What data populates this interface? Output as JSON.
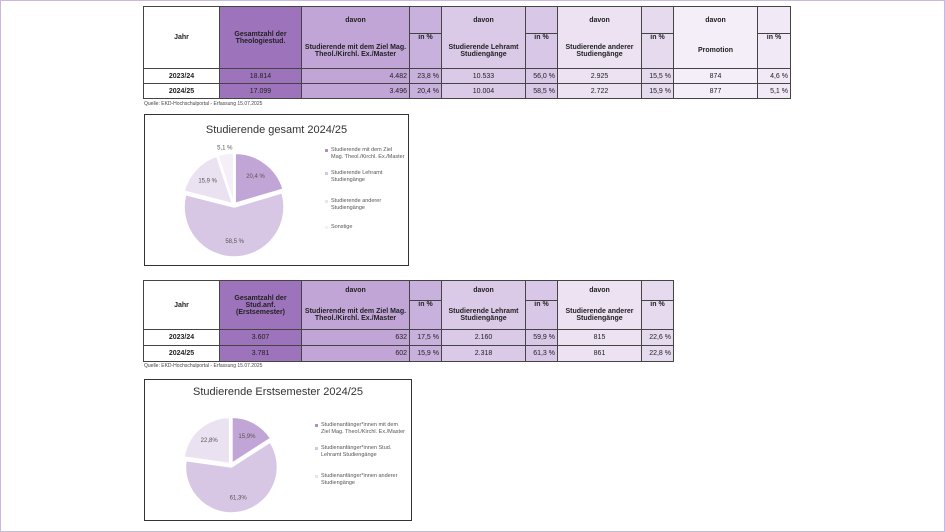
{
  "table1": {
    "header": {
      "jahr": "Jahr",
      "gesamt": "Gesamtzahl der Theologiestud.",
      "davon": "davon",
      "in_pct": "in %",
      "col_mag": "Studierende mit dem Ziel Mag. Theol./Kirchl. Ex./Master",
      "col_lehramt": "Studierende Lehramt Studiengänge",
      "col_andere": "Studierende anderer Studiengänge",
      "col_promotion": "Promotion"
    },
    "rows": [
      {
        "jahr": "2023/24",
        "gesamt": "18.814",
        "mag": "4.482",
        "mag_pct": "23,8 %",
        "lehramt": "10.533",
        "lehramt_pct": "56,0 %",
        "andere": "2.925",
        "andere_pct": "15,5 %",
        "promotion": "874",
        "promotion_pct": "4,6 %"
      },
      {
        "jahr": "2024/25",
        "gesamt": "17.099",
        "mag": "3.496",
        "mag_pct": "20,4 %",
        "lehramt": "10.004",
        "lehramt_pct": "58,5 %",
        "andere": "2.722",
        "andere_pct": "15,9 %",
        "promotion": "877",
        "promotion_pct": "5,1 %"
      }
    ],
    "source": "Quelle: EKD-Hochschulportal - Erfassung 15.07.2025"
  },
  "table2": {
    "header": {
      "jahr": "Jahr",
      "gesamt": "Gesamtzahl der Stud.anf. (Erstsemester)",
      "davon": "davon",
      "in_pct": "in %",
      "col_mag": "Studierende mit dem Ziel Mag. Theol./Kirchl. Ex./Master",
      "col_lehramt": "Studierende Lehramt Studiengänge",
      "col_andere": "Studierende anderer Studiengänge"
    },
    "rows": [
      {
        "jahr": "2023/24",
        "gesamt": "3.607",
        "mag": "632",
        "mag_pct": "17,5 %",
        "lehramt": "2.160",
        "lehramt_pct": "59,9 %",
        "andere": "815",
        "andere_pct": "22,6 %"
      },
      {
        "jahr": "2024/25",
        "gesamt": "3.781",
        "mag": "602",
        "mag_pct": "15,9 %",
        "lehramt": "2.318",
        "lehramt_pct": "61,3 %",
        "andere": "861",
        "andere_pct": "22,8 %"
      }
    ],
    "source": "Quelle: EKD-Hochschulportal - Erfassung 15.07.2025"
  },
  "chart_data": [
    {
      "type": "pie",
      "title": "Studierende gesamt 2024/25",
      "legend": "right",
      "categories": [
        "Studierende mit dem Ziel Mag. Theol./Kirchl. Ex./Master",
        "Studierende Lehramt Studiengänge",
        "Studierende anderer Studiengänge",
        "Sonstige"
      ],
      "values": [
        20.4,
        58.5,
        15.9,
        5.1
      ],
      "labels": [
        "20,4 %",
        "58,5 %",
        "15,9 %",
        "5,1 %"
      ],
      "colors": [
        "#c1a5d6",
        "#d7c7e5",
        "#ebe2f1",
        "#f4eff8"
      ]
    },
    {
      "type": "pie",
      "title": "Studierende Erstsemester 2024/25",
      "legend": "right",
      "categories": [
        "Studienanfänger*innen mit dem Ziel Mag. Theol./Kirchl. Ex./Master",
        "Studienanfänger*innen Stud. Lehramt Studiengänge",
        "Studienanfänger*innen anderer Studiengänge"
      ],
      "values": [
        15.9,
        61.3,
        22.8
      ],
      "labels": [
        "15,9%",
        "61,3%",
        "22,8%"
      ],
      "colors": [
        "#c1a5d6",
        "#d7c7e5",
        "#ebe2f1"
      ]
    }
  ]
}
